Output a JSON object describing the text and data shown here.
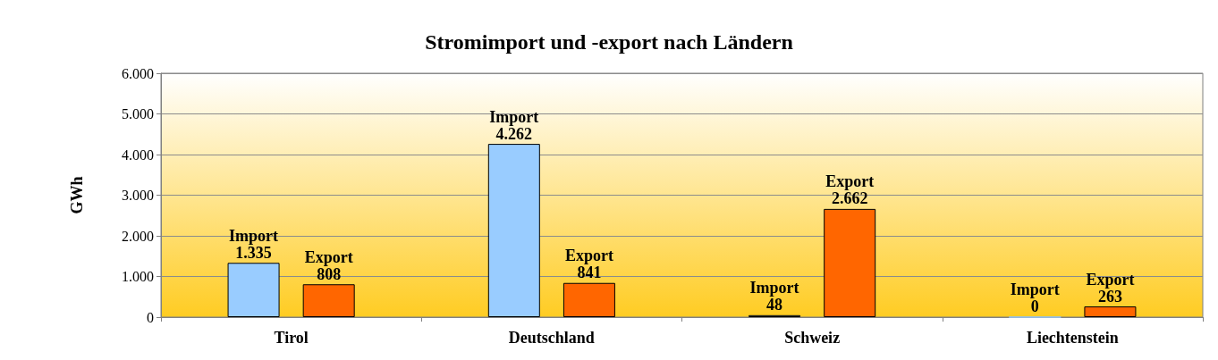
{
  "chart_data": {
    "type": "bar",
    "title": "Stromimport und -export nach Ländern",
    "ylabel": "GWh",
    "categories": [
      "Tirol",
      "Deutschland",
      "Schweiz",
      "Liechtenstein"
    ],
    "series": [
      {
        "name": "Import",
        "color": "#99ccff",
        "values": [
          1335,
          4262,
          48,
          0
        ],
        "value_labels": [
          "1.335",
          "4.262",
          "48",
          "0"
        ]
      },
      {
        "name": "Export",
        "color": "#ff6600",
        "values": [
          808,
          841,
          2662,
          263
        ],
        "value_labels": [
          "808",
          "841",
          "2.662",
          "263"
        ]
      }
    ],
    "ylim": [
      0,
      6000
    ],
    "yticks": [
      0,
      {
        "value": 1000,
        "label": "1.000"
      },
      {
        "value": 2000,
        "label": "2.000"
      },
      {
        "value": 3000,
        "label": "3.000"
      },
      {
        "value": 4000,
        "label": "4.000"
      },
      {
        "value": 5000,
        "label": "5.000"
      },
      {
        "value": 6000,
        "label": "6.000"
      }
    ],
    "grid": "y",
    "legend": false
  }
}
